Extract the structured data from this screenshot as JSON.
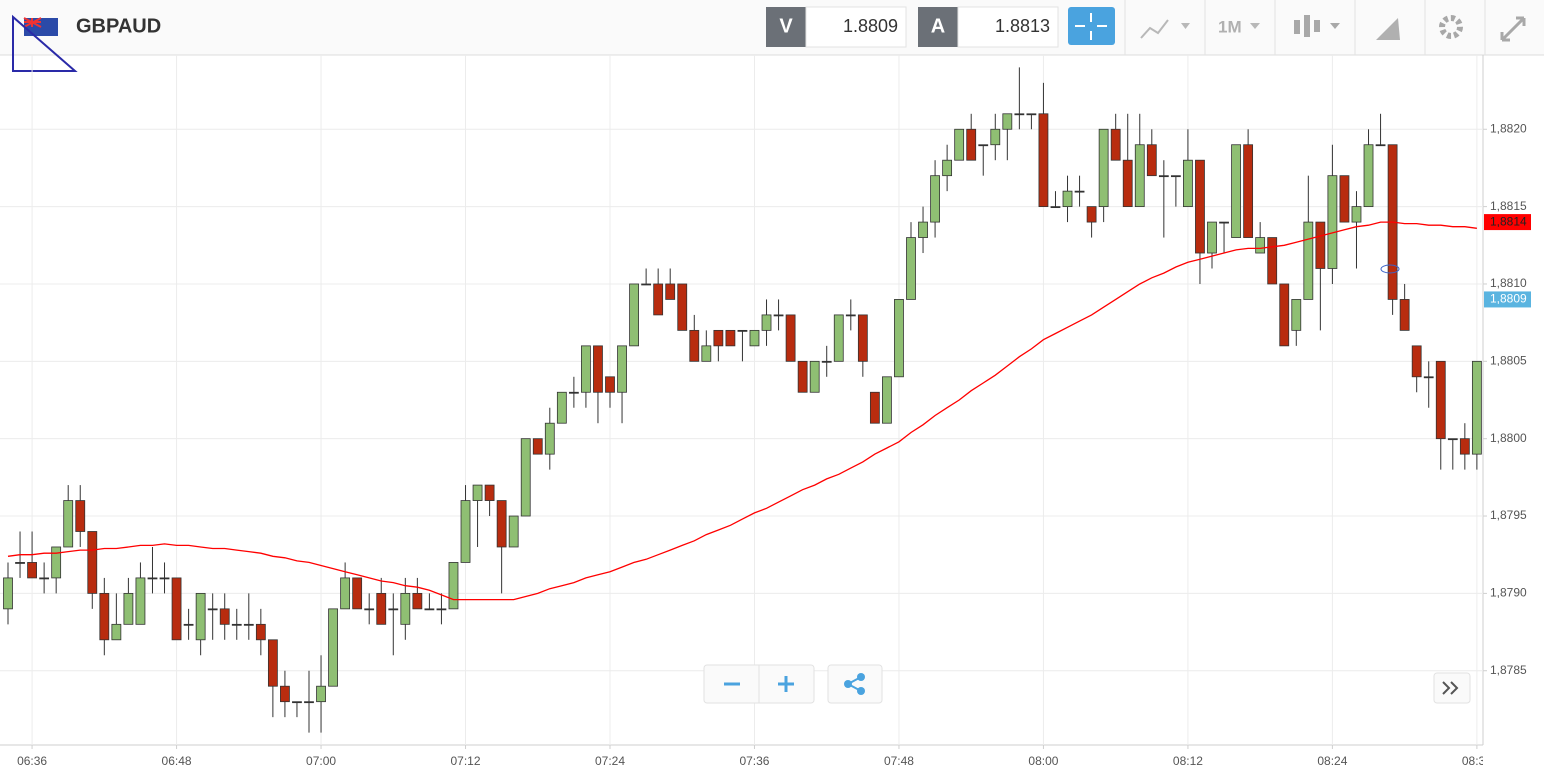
{
  "toolbar": {
    "symbol": "GBPAUD",
    "bid_label": "V",
    "bid": "1.8809",
    "ask_label": "A",
    "ask": "1.8813",
    "timeframe": "1M"
  },
  "chart_data": {
    "type": "candlestick",
    "categories": [
      null,
      null,
      "06:36",
      null,
      null,
      null,
      null,
      null,
      null,
      null,
      null,
      null,
      null,
      null,
      "06:48",
      null,
      null,
      null,
      null,
      null,
      null,
      null,
      null,
      null,
      null,
      null,
      "07:00",
      null,
      null,
      null,
      null,
      null,
      null,
      null,
      null,
      null,
      null,
      null,
      "07:12",
      null,
      null,
      null,
      null,
      null,
      null,
      null,
      null,
      null,
      null,
      null,
      "07:24",
      null,
      null,
      null,
      null,
      null,
      null,
      null,
      null,
      null,
      null,
      null,
      "07:36",
      null,
      null,
      null,
      null,
      null,
      null,
      null,
      null,
      null,
      null,
      null,
      "07:48",
      null,
      null,
      null,
      null,
      null,
      null,
      null,
      null,
      null,
      null,
      null,
      "08:00",
      null,
      null,
      null,
      null,
      null,
      null,
      null,
      null,
      null,
      null,
      null,
      "08:12",
      null,
      null,
      null,
      null,
      null,
      null,
      null,
      null,
      null,
      null,
      null,
      "08:24",
      null,
      null,
      null,
      null,
      null,
      null,
      null,
      null,
      null,
      null,
      null,
      "08:36"
    ],
    "open": [
      1.8789,
      1.8792,
      1.8792,
      1.8791,
      1.8791,
      1.8793,
      1.8796,
      1.8794,
      1.879,
      1.8787,
      1.8788,
      1.8788,
      1.8791,
      1.8791,
      1.8791,
      1.8788,
      1.8787,
      1.8789,
      1.8789,
      1.8788,
      1.8788,
      1.8788,
      1.8787,
      1.8784,
      1.8783,
      1.8783,
      1.8783,
      1.8784,
      1.8789,
      1.8791,
      1.8789,
      1.879,
      1.8789,
      1.8788,
      1.879,
      1.8789,
      1.8789,
      1.8789,
      1.8792,
      1.8796,
      1.8797,
      1.8796,
      1.8793,
      1.8795,
      1.88,
      1.8799,
      1.8801,
      1.8803,
      1.8803,
      1.8806,
      1.8804,
      1.8803,
      1.8806,
      1.881,
      1.881,
      1.881,
      1.881,
      1.8807,
      1.8805,
      1.8807,
      1.8807,
      1.8807,
      1.8806,
      1.8807,
      1.8808,
      1.8808,
      1.8805,
      1.8803,
      1.8805,
      1.8805,
      1.8808,
      1.8808,
      1.8803,
      1.8801,
      1.8804,
      1.8809,
      1.8813,
      1.8814,
      1.8817,
      1.8818,
      1.882,
      1.8819,
      1.8819,
      1.882,
      1.8821,
      1.8821,
      1.8821,
      1.8815,
      1.8815,
      1.8816,
      1.8815,
      1.8815,
      1.882,
      1.8818,
      1.8815,
      1.8819,
      1.8817,
      1.8817,
      1.8815,
      1.8818,
      1.8812,
      1.8814,
      1.8813,
      1.8819,
      1.8812,
      1.8813,
      1.881,
      1.8807,
      1.8809,
      1.8814,
      1.8811,
      1.8817,
      1.8814,
      1.8815,
      1.8819,
      1.8819,
      1.8809,
      1.8806,
      1.8804,
      1.8805,
      1.88,
      1.88,
      1.8799
    ],
    "high": [
      1.8792,
      1.8794,
      1.8794,
      1.8792,
      1.8793,
      1.8797,
      1.8797,
      1.8794,
      1.8791,
      1.879,
      1.8791,
      1.8792,
      1.8793,
      1.8792,
      1.8791,
      1.8789,
      1.879,
      1.879,
      1.879,
      1.8789,
      1.879,
      1.8789,
      1.8787,
      1.8785,
      1.8783,
      1.8785,
      1.8786,
      1.8789,
      1.8792,
      1.8791,
      1.879,
      1.8791,
      1.879,
      1.8791,
      1.8791,
      1.879,
      1.879,
      1.8792,
      1.8797,
      1.8797,
      1.8797,
      1.8796,
      1.8795,
      1.88,
      1.88,
      1.8802,
      1.8803,
      1.8804,
      1.8806,
      1.8806,
      1.8804,
      1.8806,
      1.881,
      1.8811,
      1.8811,
      1.8811,
      1.881,
      1.8808,
      1.8807,
      1.8807,
      1.8807,
      1.8807,
      1.8807,
      1.8809,
      1.8809,
      1.8808,
      1.8805,
      1.8805,
      1.8806,
      1.8808,
      1.8809,
      1.8808,
      1.8803,
      1.8804,
      1.8809,
      1.8814,
      1.8815,
      1.8818,
      1.8819,
      1.882,
      1.8821,
      1.8819,
      1.8821,
      1.8821,
      1.8824,
      1.8821,
      1.8823,
      1.8816,
      1.8817,
      1.8817,
      1.8815,
      1.882,
      1.8821,
      1.8821,
      1.8821,
      1.882,
      1.8818,
      1.8817,
      1.882,
      1.8818,
      1.8814,
      1.8814,
      1.8819,
      1.882,
      1.8814,
      1.8813,
      1.881,
      1.8809,
      1.8817,
      1.8814,
      1.8819,
      1.8817,
      1.8816,
      1.882,
      1.8821,
      1.8819,
      1.881,
      1.8806,
      1.8805,
      1.8805,
      1.88,
      1.8801,
      1.8805
    ],
    "low": [
      1.8788,
      1.8791,
      1.8791,
      1.879,
      1.879,
      1.8793,
      1.8793,
      1.8789,
      1.8786,
      1.8787,
      1.8788,
      1.8788,
      1.879,
      1.879,
      1.8787,
      1.8787,
      1.8786,
      1.8787,
      1.8787,
      1.8787,
      1.8787,
      1.8786,
      1.8782,
      1.8782,
      1.8782,
      1.8781,
      1.8781,
      1.8784,
      1.8789,
      1.8789,
      1.8788,
      1.8788,
      1.8786,
      1.8787,
      1.8789,
      1.8789,
      1.8788,
      1.8789,
      1.8792,
      1.8793,
      1.8795,
      1.879,
      1.8793,
      1.8795,
      1.8799,
      1.8798,
      1.8801,
      1.8802,
      1.8802,
      1.8801,
      1.8802,
      1.8801,
      1.8806,
      1.881,
      1.8808,
      1.8809,
      1.8807,
      1.8805,
      1.8805,
      1.8805,
      1.8806,
      1.8805,
      1.8806,
      1.8806,
      1.8807,
      1.8805,
      1.8803,
      1.8803,
      1.8804,
      1.8805,
      1.8807,
      1.8804,
      1.8801,
      1.8801,
      1.8804,
      1.8809,
      1.8812,
      1.8813,
      1.8816,
      1.8818,
      1.8818,
      1.8817,
      1.8818,
      1.8818,
      1.882,
      1.882,
      1.8815,
      1.8815,
      1.8814,
      1.8815,
      1.8813,
      1.8814,
      1.8818,
      1.8815,
      1.8815,
      1.8817,
      1.8813,
      1.8815,
      1.8815,
      1.881,
      1.8811,
      1.8812,
      1.8813,
      1.8813,
      1.8812,
      1.881,
      1.8806,
      1.8806,
      1.8809,
      1.8807,
      1.881,
      1.8814,
      1.8811,
      1.8815,
      1.8819,
      1.8808,
      1.8807,
      1.8803,
      1.8802,
      1.8798,
      1.8798,
      1.8798,
      1.8798
    ],
    "close": [
      1.8791,
      1.8792,
      1.8791,
      1.8791,
      1.8793,
      1.8796,
      1.8794,
      1.879,
      1.8787,
      1.8788,
      1.879,
      1.8791,
      1.8791,
      1.8791,
      1.8787,
      1.8788,
      1.879,
      1.8789,
      1.8788,
      1.8788,
      1.8788,
      1.8787,
      1.8784,
      1.8783,
      1.8783,
      1.8783,
      1.8784,
      1.8789,
      1.8791,
      1.8789,
      1.8789,
      1.8788,
      1.8789,
      1.879,
      1.8789,
      1.8789,
      1.8789,
      1.8792,
      1.8796,
      1.8797,
      1.8796,
      1.8793,
      1.8795,
      1.88,
      1.8799,
      1.8801,
      1.8803,
      1.8803,
      1.8806,
      1.8803,
      1.8803,
      1.8806,
      1.881,
      1.881,
      1.8808,
      1.8809,
      1.8807,
      1.8805,
      1.8806,
      1.8806,
      1.8806,
      1.8807,
      1.8807,
      1.8808,
      1.8808,
      1.8805,
      1.8803,
      1.8805,
      1.8805,
      1.8808,
      1.8808,
      1.8805,
      1.8801,
      1.8804,
      1.8809,
      1.8813,
      1.8814,
      1.8817,
      1.8818,
      1.882,
      1.8818,
      1.8819,
      1.882,
      1.8821,
      1.8821,
      1.8821,
      1.8815,
      1.8815,
      1.8816,
      1.8816,
      1.8814,
      1.882,
      1.8818,
      1.8815,
      1.8819,
      1.8817,
      1.8817,
      1.8817,
      1.8818,
      1.8812,
      1.8814,
      1.8814,
      1.8819,
      1.8813,
      1.8813,
      1.881,
      1.8806,
      1.8809,
      1.8814,
      1.8811,
      1.8817,
      1.8814,
      1.8815,
      1.8819,
      1.8819,
      1.8809,
      1.8807,
      1.8804,
      1.8804,
      1.88,
      1.88,
      1.8799,
      1.8805
    ],
    "up_color": "#8fbf73",
    "down_color": "#b82c0f",
    "doji_color": "#333333",
    "moving_average": {
      "color": "#ff0000",
      "values": [
        1.87924,
        1.87925,
        1.87925,
        1.87926,
        1.87926,
        1.87927,
        1.87928,
        1.87928,
        1.87929,
        1.87929,
        1.8793,
        1.87931,
        1.87931,
        1.87932,
        1.87931,
        1.87931,
        1.8793,
        1.87929,
        1.87929,
        1.87928,
        1.87927,
        1.87926,
        1.87924,
        1.87923,
        1.87921,
        1.8792,
        1.87918,
        1.87916,
        1.87914,
        1.87912,
        1.8791,
        1.87908,
        1.87907,
        1.87905,
        1.87904,
        1.87902,
        1.87899,
        1.87896,
        1.87896,
        1.87896,
        1.87896,
        1.87896,
        1.87896,
        1.87898,
        1.879,
        1.87903,
        1.87905,
        1.87907,
        1.8791,
        1.87912,
        1.87914,
        1.87917,
        1.8792,
        1.87922,
        1.87925,
        1.87928,
        1.87931,
        1.87934,
        1.87938,
        1.87941,
        1.87944,
        1.87948,
        1.87952,
        1.87955,
        1.87959,
        1.87963,
        1.87967,
        1.8797,
        1.87974,
        1.87977,
        1.87981,
        1.87985,
        1.8799,
        1.87994,
        1.87998,
        1.88004,
        1.88009,
        1.88015,
        1.8802,
        1.88025,
        1.88031,
        1.88036,
        1.88041,
        1.88047,
        1.88053,
        1.88058,
        1.88064,
        1.88068,
        1.88072,
        1.88076,
        1.8808,
        1.88085,
        1.8809,
        1.88095,
        1.881,
        1.88104,
        1.88107,
        1.88111,
        1.88114,
        1.88116,
        1.88118,
        1.8812,
        1.88122,
        1.88123,
        1.88123,
        1.88124,
        1.88125,
        1.88127,
        1.88129,
        1.88131,
        1.88133,
        1.88135,
        1.88137,
        1.88138,
        1.8814,
        1.8814,
        1.88139,
        1.88139,
        1.88138,
        1.88138,
        1.88137,
        1.88137,
        1.88136
      ]
    },
    "price_tags": [
      {
        "value": 1.8814,
        "label": "1,8814",
        "color": "#ff0000"
      },
      {
        "value": 1.8809,
        "label": "1,8809",
        "color": "#5ab4e0"
      }
    ],
    "ylim": [
      1.87802,
      1.88248
    ],
    "yticks": [
      {
        "value": 1.8785,
        "label": "1,8785"
      },
      {
        "value": 1.879,
        "label": "1,8790"
      },
      {
        "value": 1.8795,
        "label": "1,8795"
      },
      {
        "value": 1.88,
        "label": "1,8800"
      },
      {
        "value": 1.8805,
        "label": "1,8805"
      },
      {
        "value": 1.881,
        "label": "1,8810"
      },
      {
        "value": 1.8815,
        "label": "1,8815"
      },
      {
        "value": 1.882,
        "label": "1,8820"
      }
    ],
    "grid": true
  }
}
